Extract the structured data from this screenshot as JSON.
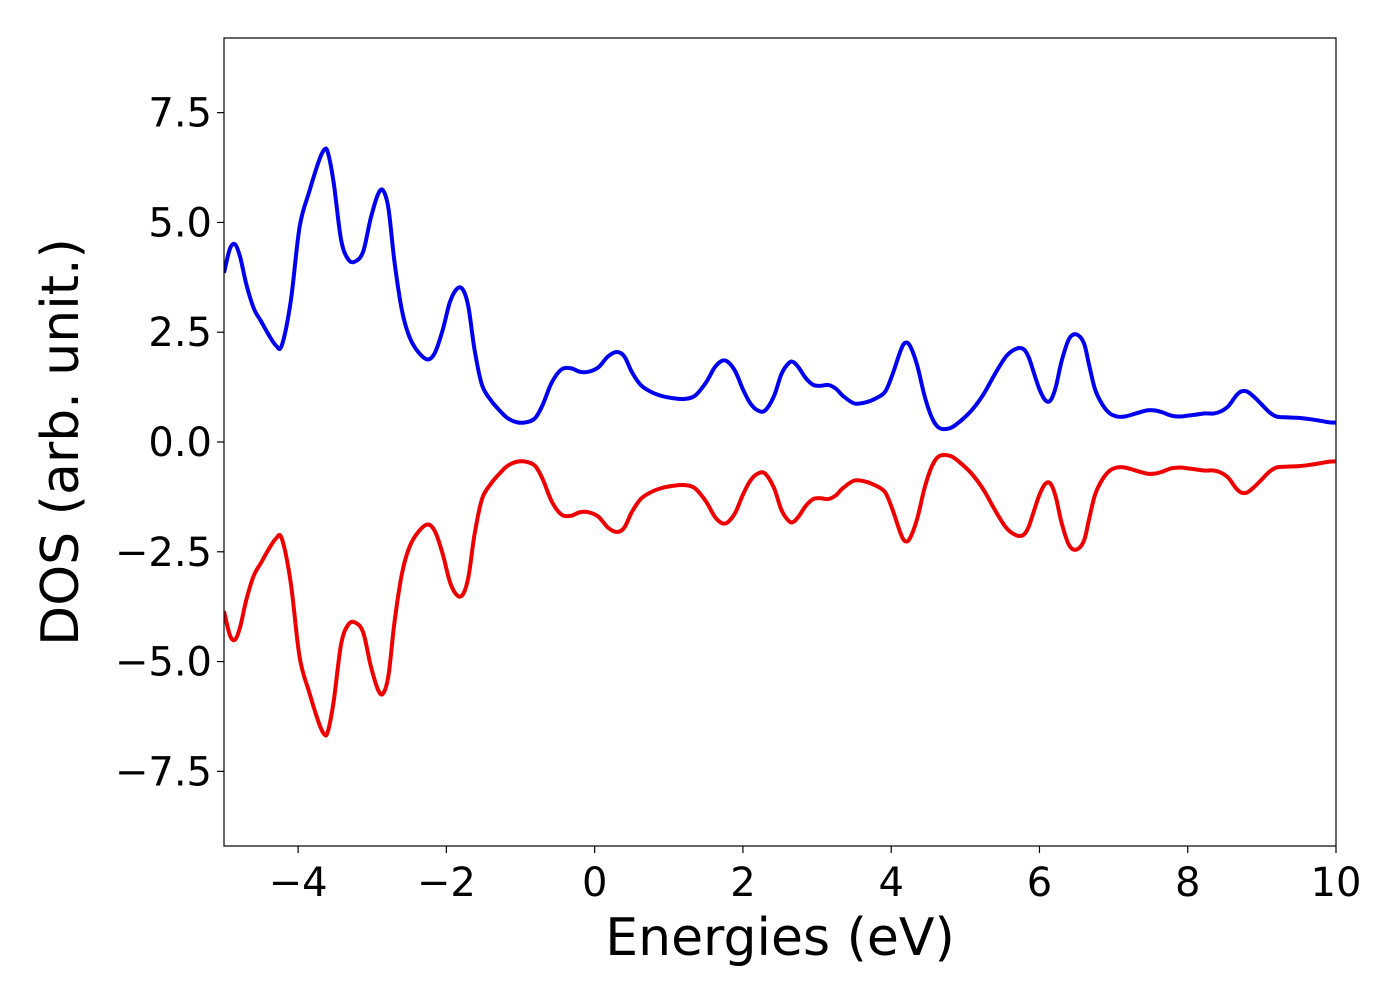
{
  "chart_data": {
    "type": "line",
    "xlabel": "Energies (eV)",
    "ylabel": "DOS (arb. unit.)",
    "xlim": [
      -5,
      10
    ],
    "ylim": [
      -9.2,
      9.2
    ],
    "grid": false,
    "legend": "none",
    "x_ticks": [
      -4,
      -2,
      0,
      2,
      4,
      6,
      8,
      10
    ],
    "x_tick_labels": [
      "−4",
      "−2",
      "0",
      "2",
      "4",
      "6",
      "8",
      "10"
    ],
    "y_ticks": [
      -7.5,
      -5.0,
      -2.5,
      0.0,
      2.5,
      5.0,
      7.5
    ],
    "y_tick_labels": [
      "−7.5",
      "−5.0",
      "−2.5",
      "0.0",
      "2.5",
      "5.0",
      "7.5"
    ],
    "series": [
      {
        "color": "#0000ee",
        "x": [
          -5.0,
          -4.92,
          -4.85,
          -4.78,
          -4.7,
          -4.6,
          -4.5,
          -4.4,
          -4.3,
          -4.22,
          -4.1,
          -3.98,
          -3.85,
          -3.72,
          -3.65,
          -3.6,
          -3.52,
          -3.42,
          -3.32,
          -3.22,
          -3.12,
          -3.02,
          -2.92,
          -2.85,
          -2.78,
          -2.7,
          -2.6,
          -2.5,
          -2.38,
          -2.25,
          -2.15,
          -2.05,
          -1.95,
          -1.85,
          -1.77,
          -1.7,
          -1.62,
          -1.52,
          -1.4,
          -1.3,
          -1.18,
          -1.05,
          -0.92,
          -0.8,
          -0.7,
          -0.58,
          -0.45,
          -0.32,
          -0.2,
          -0.08,
          0.05,
          0.18,
          0.3,
          0.4,
          0.5,
          0.62,
          0.75,
          0.9,
          1.05,
          1.2,
          1.35,
          1.5,
          1.62,
          1.72,
          1.8,
          1.9,
          2.0,
          2.1,
          2.2,
          2.3,
          2.42,
          2.52,
          2.62,
          2.68,
          2.75,
          2.85,
          2.95,
          3.05,
          3.15,
          3.25,
          3.35,
          3.5,
          3.65,
          3.8,
          3.92,
          4.02,
          4.12,
          4.18,
          4.25,
          4.35,
          4.45,
          4.55,
          4.65,
          4.8,
          4.95,
          5.1,
          5.25,
          5.4,
          5.55,
          5.68,
          5.78,
          5.85,
          5.92,
          6.0,
          6.08,
          6.15,
          6.22,
          6.3,
          6.4,
          6.5,
          6.6,
          6.67,
          6.75,
          6.85,
          6.95,
          7.05,
          7.15,
          7.3,
          7.45,
          7.55,
          7.65,
          7.78,
          7.9,
          8.0,
          8.1,
          8.22,
          8.35,
          8.45,
          8.55,
          8.65,
          8.72,
          8.8,
          8.9,
          9.0,
          9.1,
          9.2,
          9.35,
          9.5,
          9.65,
          9.8,
          9.9,
          10.0
        ],
        "y": [
          3.85,
          4.4,
          4.5,
          4.2,
          3.6,
          3.05,
          2.75,
          2.45,
          2.2,
          2.2,
          3.2,
          4.9,
          5.7,
          6.4,
          6.65,
          6.6,
          5.9,
          4.6,
          4.15,
          4.12,
          4.35,
          5.1,
          5.65,
          5.72,
          5.3,
          4.1,
          3.0,
          2.4,
          2.05,
          1.88,
          2.05,
          2.55,
          3.2,
          3.5,
          3.45,
          3.05,
          2.1,
          1.3,
          0.95,
          0.75,
          0.55,
          0.45,
          0.45,
          0.55,
          0.85,
          1.35,
          1.65,
          1.68,
          1.6,
          1.6,
          1.7,
          1.95,
          2.05,
          1.95,
          1.6,
          1.3,
          1.15,
          1.05,
          1.0,
          0.98,
          1.05,
          1.35,
          1.7,
          1.85,
          1.82,
          1.6,
          1.2,
          0.88,
          0.72,
          0.72,
          1.05,
          1.55,
          1.8,
          1.82,
          1.7,
          1.45,
          1.3,
          1.28,
          1.3,
          1.22,
          1.05,
          0.88,
          0.9,
          1.0,
          1.15,
          1.55,
          2.05,
          2.25,
          2.2,
          1.75,
          1.05,
          0.55,
          0.32,
          0.32,
          0.5,
          0.75,
          1.1,
          1.55,
          1.95,
          2.12,
          2.12,
          1.95,
          1.6,
          1.2,
          0.95,
          0.95,
          1.25,
          1.85,
          2.35,
          2.45,
          2.25,
          1.75,
          1.2,
          0.85,
          0.65,
          0.58,
          0.58,
          0.65,
          0.72,
          0.72,
          0.68,
          0.6,
          0.58,
          0.6,
          0.62,
          0.65,
          0.65,
          0.7,
          0.82,
          1.05,
          1.15,
          1.15,
          1.02,
          0.85,
          0.68,
          0.58,
          0.56,
          0.55,
          0.52,
          0.48,
          0.45,
          0.44
        ]
      },
      {
        "color": "#ee0000",
        "x": [
          -5.0,
          -4.92,
          -4.85,
          -4.78,
          -4.7,
          -4.6,
          -4.5,
          -4.4,
          -4.3,
          -4.22,
          -4.1,
          -3.98,
          -3.85,
          -3.72,
          -3.65,
          -3.6,
          -3.52,
          -3.42,
          -3.32,
          -3.22,
          -3.12,
          -3.02,
          -2.92,
          -2.85,
          -2.78,
          -2.7,
          -2.6,
          -2.5,
          -2.38,
          -2.25,
          -2.15,
          -2.05,
          -1.95,
          -1.85,
          -1.77,
          -1.7,
          -1.62,
          -1.52,
          -1.4,
          -1.3,
          -1.18,
          -1.05,
          -0.92,
          -0.8,
          -0.7,
          -0.58,
          -0.45,
          -0.32,
          -0.2,
          -0.08,
          0.05,
          0.18,
          0.3,
          0.4,
          0.5,
          0.62,
          0.75,
          0.9,
          1.05,
          1.2,
          1.35,
          1.5,
          1.62,
          1.72,
          1.8,
          1.9,
          2.0,
          2.1,
          2.2,
          2.3,
          2.42,
          2.52,
          2.62,
          2.68,
          2.75,
          2.85,
          2.95,
          3.05,
          3.15,
          3.25,
          3.35,
          3.5,
          3.65,
          3.8,
          3.92,
          4.02,
          4.12,
          4.18,
          4.25,
          4.35,
          4.45,
          4.55,
          4.65,
          4.8,
          4.95,
          5.1,
          5.25,
          5.4,
          5.55,
          5.68,
          5.78,
          5.85,
          5.92,
          6.0,
          6.08,
          6.15,
          6.22,
          6.3,
          6.4,
          6.5,
          6.6,
          6.67,
          6.75,
          6.85,
          6.95,
          7.05,
          7.15,
          7.3,
          7.45,
          7.55,
          7.65,
          7.78,
          7.9,
          8.0,
          8.1,
          8.22,
          8.35,
          8.45,
          8.55,
          8.65,
          8.72,
          8.8,
          8.9,
          9.0,
          9.1,
          9.2,
          9.35,
          9.5,
          9.65,
          9.8,
          9.9,
          10.0
        ],
        "y": [
          -3.85,
          -4.4,
          -4.5,
          -4.2,
          -3.6,
          -3.05,
          -2.75,
          -2.45,
          -2.2,
          -2.2,
          -3.2,
          -4.9,
          -5.7,
          -6.4,
          -6.65,
          -6.6,
          -5.9,
          -4.6,
          -4.15,
          -4.12,
          -4.35,
          -5.1,
          -5.65,
          -5.72,
          -5.3,
          -4.1,
          -3.0,
          -2.4,
          -2.05,
          -1.88,
          -2.05,
          -2.55,
          -3.2,
          -3.5,
          -3.45,
          -3.05,
          -2.1,
          -1.3,
          -0.95,
          -0.75,
          -0.55,
          -0.45,
          -0.45,
          -0.55,
          -0.85,
          -1.35,
          -1.65,
          -1.68,
          -1.6,
          -1.6,
          -1.7,
          -1.95,
          -2.05,
          -1.95,
          -1.6,
          -1.3,
          -1.15,
          -1.05,
          -1.0,
          -0.98,
          -1.05,
          -1.35,
          -1.7,
          -1.85,
          -1.82,
          -1.6,
          -1.2,
          -0.88,
          -0.72,
          -0.72,
          -1.05,
          -1.55,
          -1.8,
          -1.82,
          -1.7,
          -1.45,
          -1.3,
          -1.28,
          -1.3,
          -1.22,
          -1.05,
          -0.88,
          -0.9,
          -1.0,
          -1.15,
          -1.55,
          -2.05,
          -2.25,
          -2.2,
          -1.75,
          -1.05,
          -0.55,
          -0.32,
          -0.32,
          -0.5,
          -0.75,
          -1.1,
          -1.55,
          -1.95,
          -2.12,
          -2.12,
          -1.95,
          -1.6,
          -1.2,
          -0.95,
          -0.95,
          -1.25,
          -1.85,
          -2.35,
          -2.45,
          -2.25,
          -1.75,
          -1.2,
          -0.85,
          -0.65,
          -0.58,
          -0.58,
          -0.65,
          -0.72,
          -0.72,
          -0.68,
          -0.6,
          -0.58,
          -0.6,
          -0.62,
          -0.65,
          -0.65,
          -0.7,
          -0.82,
          -1.05,
          -1.15,
          -1.15,
          -1.02,
          -0.85,
          -0.68,
          -0.58,
          -0.56,
          -0.55,
          -0.52,
          -0.48,
          -0.45,
          -0.44
        ]
      }
    ]
  }
}
